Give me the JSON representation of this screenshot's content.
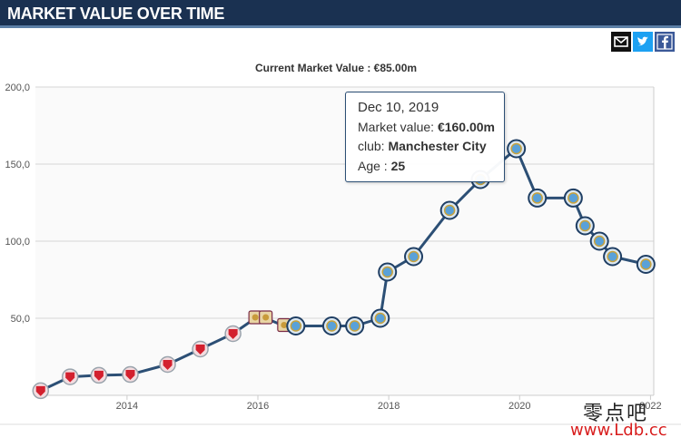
{
  "header": {
    "title": "MARKET VALUE OVER TIME"
  },
  "share": {
    "mail_icon": "mail-icon",
    "twitter_icon": "twitter-icon",
    "facebook_icon": "facebook-icon"
  },
  "chart_data": {
    "type": "line",
    "title": "Current Market Value : €85.00m",
    "xlabel": "",
    "ylabel": "",
    "ylim": [
      0,
      200
    ],
    "yticks": [
      50,
      100,
      150,
      200
    ],
    "ytick_labels": [
      "50,0",
      "100,0",
      "150,0",
      "200,0"
    ],
    "xlim": [
      2012.6,
      2022.05
    ],
    "xticks": [
      2014,
      2016,
      2018,
      2020,
      2022
    ],
    "xtick_labels": [
      "2014",
      "2016",
      "2018",
      "2020",
      "2022"
    ],
    "grid": "horizontal",
    "line_color": "#2c4f75",
    "series": [
      {
        "points": [
          {
            "x": 2012.68,
            "y": 3,
            "club": "liverpool"
          },
          {
            "x": 2013.13,
            "y": 12,
            "club": "liverpool"
          },
          {
            "x": 2013.57,
            "y": 13,
            "club": "liverpool"
          },
          {
            "x": 2014.05,
            "y": 13.5,
            "club": "liverpool"
          },
          {
            "x": 2014.62,
            "y": 20,
            "club": "liverpool"
          },
          {
            "x": 2015.12,
            "y": 30,
            "club": "liverpool"
          },
          {
            "x": 2015.62,
            "y": 40,
            "club": "liverpool"
          },
          {
            "x": 2015.96,
            "y": 50,
            "club": "aston-villa"
          },
          {
            "x": 2016.12,
            "y": 50,
            "club": "aston-villa"
          },
          {
            "x": 2016.4,
            "y": 45,
            "club": "aston-villa"
          },
          {
            "x": 2016.58,
            "y": 45,
            "club": "manchester-city"
          },
          {
            "x": 2017.13,
            "y": 45,
            "club": "manchester-city"
          },
          {
            "x": 2017.48,
            "y": 45,
            "club": "manchester-city"
          },
          {
            "x": 2017.87,
            "y": 50,
            "club": "manchester-city"
          },
          {
            "x": 2017.98,
            "y": 80,
            "club": "manchester-city"
          },
          {
            "x": 2018.38,
            "y": 90,
            "club": "manchester-city"
          },
          {
            "x": 2018.93,
            "y": 120,
            "club": "manchester-city"
          },
          {
            "x": 2019.4,
            "y": 140,
            "club": "manchester-city"
          },
          {
            "x": 2019.95,
            "y": 160,
            "club": "manchester-city"
          },
          {
            "x": 2020.27,
            "y": 128,
            "club": "manchester-city"
          },
          {
            "x": 2020.82,
            "y": 128,
            "club": "manchester-city"
          },
          {
            "x": 2021.0,
            "y": 110,
            "club": "manchester-city"
          },
          {
            "x": 2021.22,
            "y": 100,
            "club": "manchester-city"
          },
          {
            "x": 2021.42,
            "y": 90,
            "club": "manchester-city"
          },
          {
            "x": 2021.93,
            "y": 85,
            "club": "manchester-city"
          }
        ]
      }
    ],
    "club_colors": {
      "liverpool": "#d3202e",
      "aston-villa": "#c89a3a",
      "manchester-city": "#5aa1d8"
    },
    "tooltip": {
      "date": "Dec 10, 2019",
      "market_value_label": "Market value: ",
      "market_value": "€160.00m",
      "club_label": "club: ",
      "club": "Manchester City",
      "age_label": "Age : ",
      "age": "25"
    }
  },
  "watermark": {
    "text_cn": "零点吧",
    "url": "www.Ldb.cc"
  }
}
